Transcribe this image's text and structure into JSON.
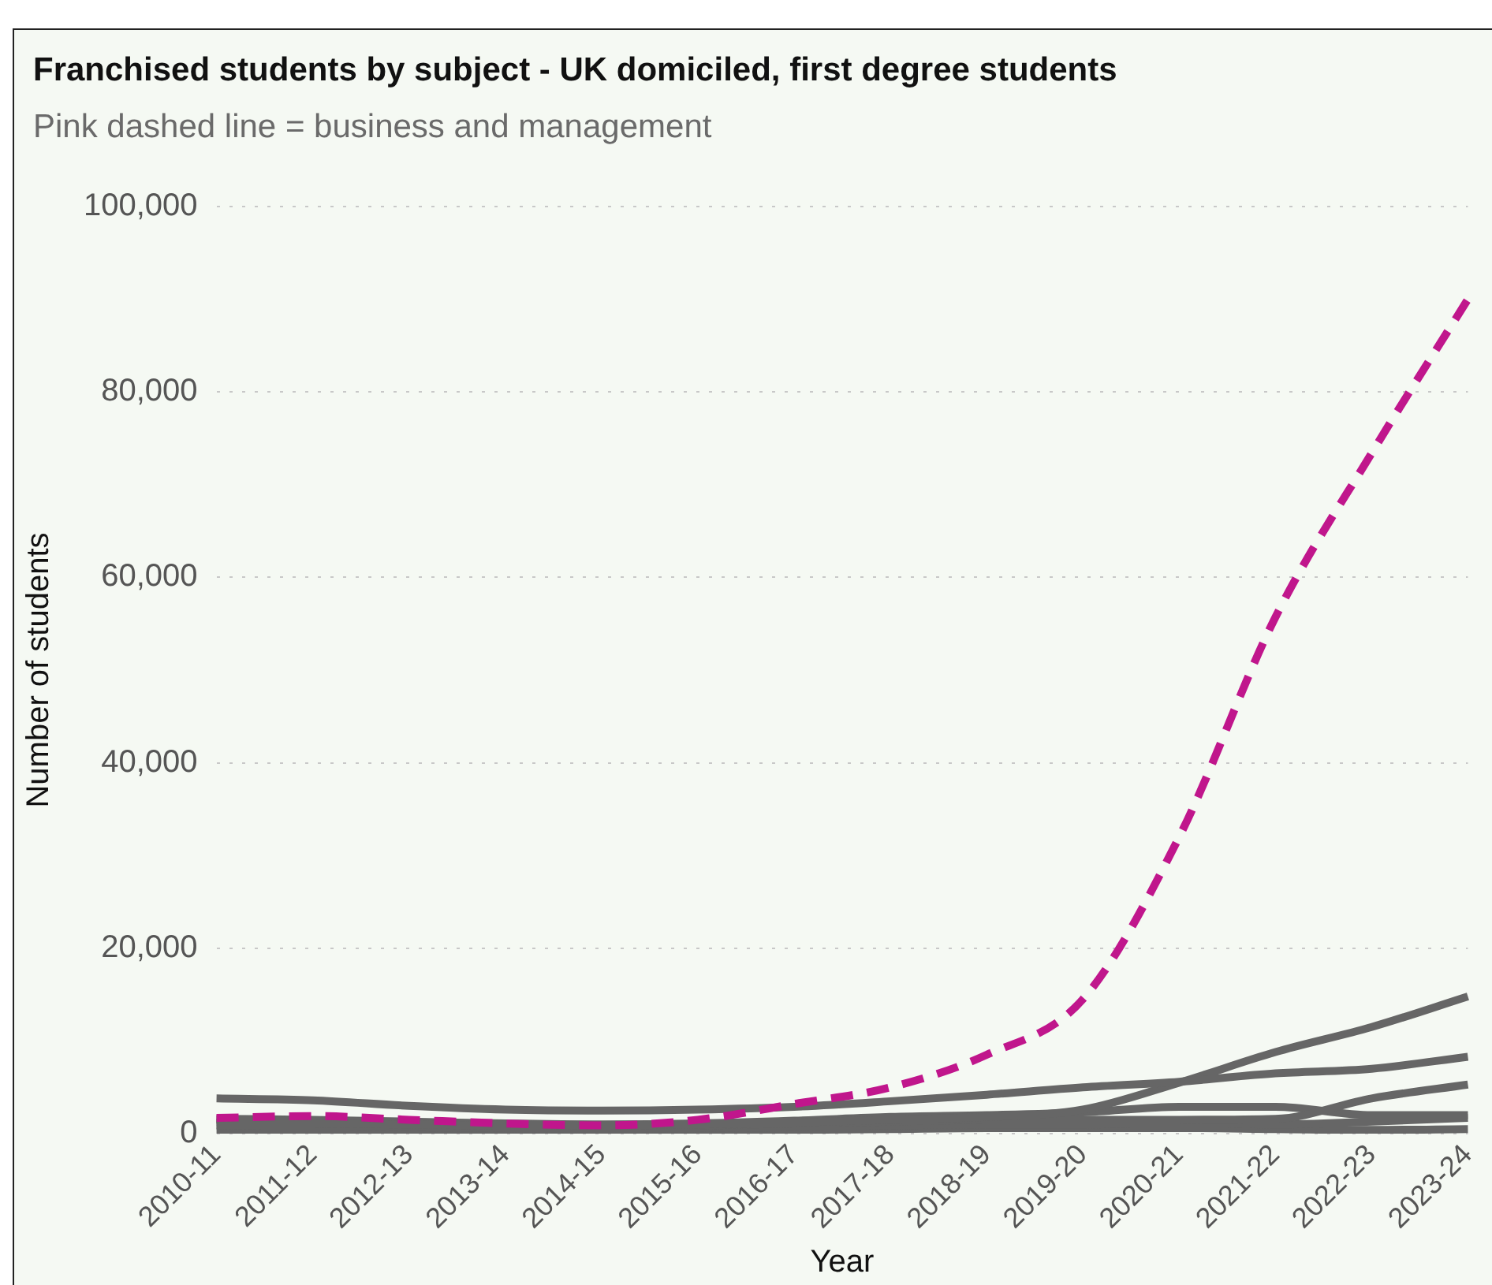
{
  "chart_data": {
    "type": "line",
    "title": "Franchised students by subject - UK domiciled, first degree students",
    "subtitle": "Pink dashed line = business and management",
    "xlabel": "Year",
    "ylabel": "Number of students",
    "categories": [
      "2010-11",
      "2011-12",
      "2012-13",
      "2013-14",
      "2014-15",
      "2015-16",
      "2016-17",
      "2017-18",
      "2018-19",
      "2019-20",
      "2020-21",
      "2021-22",
      "2022-23",
      "2023-24"
    ],
    "series": [
      {
        "color": "#c0168c",
        "line_style": "dashed",
        "values": [
          1700,
          1900,
          1500,
          1100,
          900,
          1500,
          3200,
          5000,
          8500,
          14500,
          32000,
          55700,
          73400,
          90000
        ]
      },
      {
        "color": "#666666",
        "line_style": "solid",
        "values": [
          3800,
          3600,
          3000,
          2600,
          2500,
          2600,
          2900,
          3500,
          4200,
          5000,
          5600,
          6500,
          7000,
          8300
        ]
      },
      {
        "color": "#666666",
        "line_style": "solid",
        "values": [
          1200,
          1100,
          1000,
          900,
          900,
          1000,
          1200,
          1500,
          1800,
          2600,
          5500,
          8800,
          11500,
          14800
        ]
      },
      {
        "color": "#666666",
        "line_style": "solid",
        "values": [
          1500,
          1400,
          1200,
          1000,
          900,
          900,
          1100,
          1300,
          1500,
          1500,
          1500,
          1600,
          3800,
          5300
        ]
      },
      {
        "color": "#666666",
        "line_style": "solid",
        "values": [
          1600,
          1500,
          1300,
          1100,
          1000,
          1100,
          1400,
          1800,
          2000,
          2300,
          2900,
          2900,
          2000,
          2000
        ]
      },
      {
        "color": "#666666",
        "line_style": "solid",
        "values": [
          900,
          800,
          700,
          600,
          500,
          600,
          700,
          900,
          1000,
          1000,
          1200,
          1000,
          1300,
          1700
        ]
      },
      {
        "color": "#666666",
        "line_style": "solid",
        "values": [
          300,
          300,
          300,
          200,
          200,
          300,
          400,
          500,
          600,
          600,
          600,
          500,
          400,
          500
        ]
      }
    ],
    "ylim": [
      0,
      100000
    ],
    "yticks": [
      {
        "value": 0,
        "label": "0"
      },
      {
        "value": 20000,
        "label": "20,000"
      },
      {
        "value": 40000,
        "label": "40,000"
      },
      {
        "value": 60000,
        "label": "60,000"
      },
      {
        "value": 80000,
        "label": "80,000"
      },
      {
        "value": 100000,
        "label": "100,000"
      }
    ],
    "grid": "y",
    "legend": false,
    "marker": "none"
  }
}
